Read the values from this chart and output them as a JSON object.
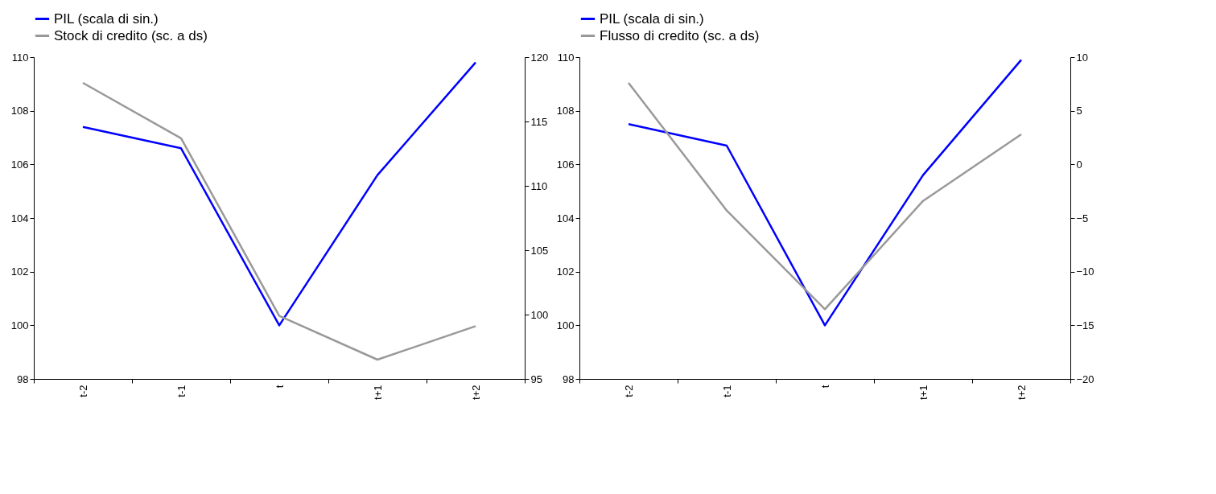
{
  "chart_data": [
    {
      "type": "line",
      "categories": [
        "t-2",
        "t-1",
        "t",
        "t+1",
        "t+2"
      ],
      "ylim": [
        98,
        110
      ],
      "yticks": [
        98,
        100,
        102,
        104,
        106,
        108,
        110
      ],
      "y2lim": [
        95,
        120
      ],
      "y2ticks": [
        95,
        100,
        105,
        110,
        115,
        120
      ],
      "legend": "top",
      "grid": false,
      "series": [
        {
          "name": "PIL (scala di sin.)",
          "color": "#0000ff",
          "values": [
            107.4,
            106.6,
            100,
            105.6,
            109.8
          ]
        },
        {
          "name": "Stock di credito (sc. a ds)",
          "color": "#999999",
          "axis": "y2",
          "values": [
            118,
            113.7,
            99.9,
            96.5,
            99.1
          ]
        }
      ]
    },
    {
      "type": "line",
      "categories": [
        "t-2",
        "t-1",
        "t",
        "t+1",
        "t+2"
      ],
      "ylim": [
        98,
        110
      ],
      "yticks": [
        98,
        100,
        102,
        104,
        106,
        108,
        110
      ],
      "y2lim": [
        -20,
        10
      ],
      "y2ticks": [
        -20,
        -15,
        -10,
        -5,
        0,
        5,
        10
      ],
      "legend": "top",
      "grid": false,
      "series": [
        {
          "name": "PIL (scala di sin.)",
          "color": "#0000ff",
          "values": [
            107.5,
            106.7,
            100,
            105.6,
            109.9
          ]
        },
        {
          "name": "Flusso di credito (sc. a ds)",
          "color": "#999999",
          "axis": "y2",
          "values": [
            7.6,
            -4.3,
            -13.5,
            -3.4,
            2.8
          ]
        }
      ]
    }
  ]
}
